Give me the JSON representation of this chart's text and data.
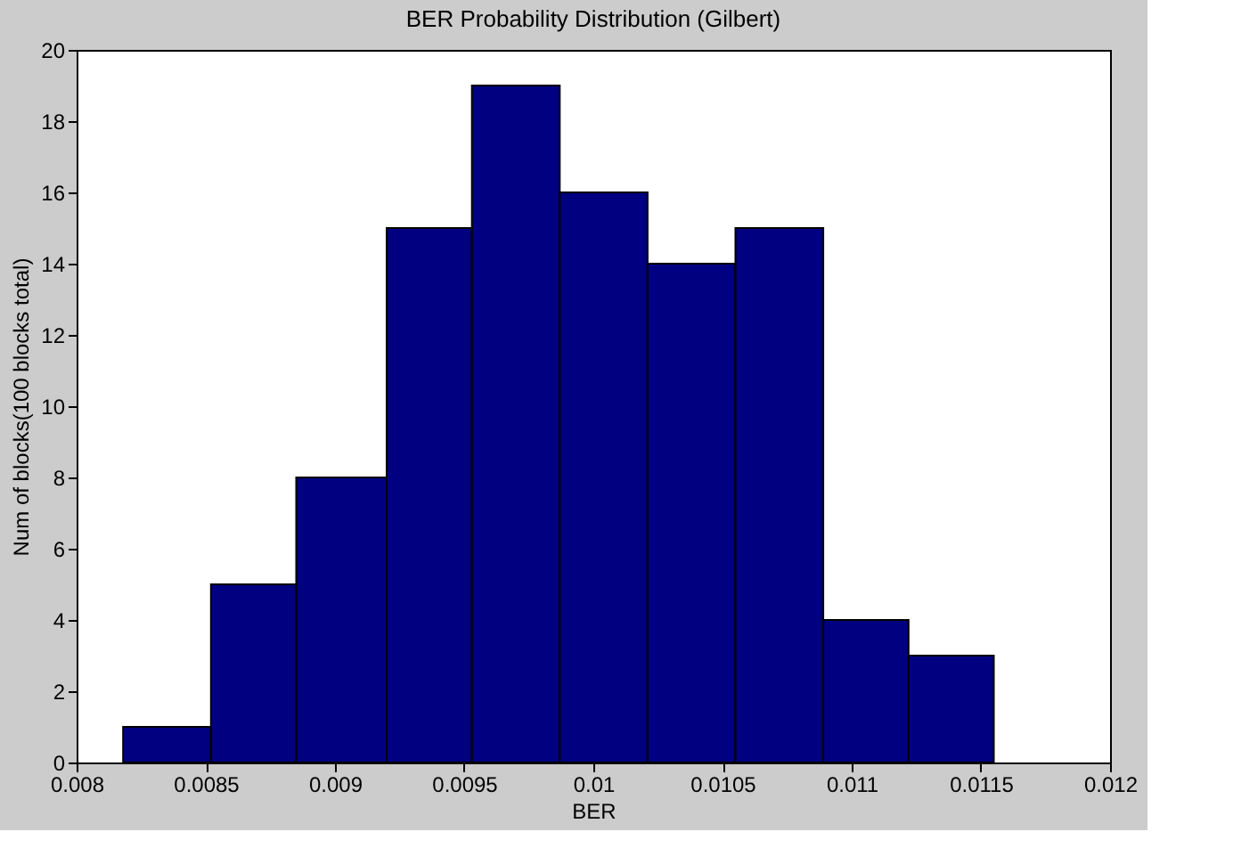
{
  "chart_data": {
    "type": "histogram",
    "title": "BER Probability Distribution (Gilbert)",
    "xlabel": "BER",
    "ylabel": "Num of blocks(100 blocks total)",
    "bins": [
      0.00818,
      0.00852,
      0.00885,
      0.0092,
      0.00953,
      0.00987,
      0.01021,
      0.01055,
      0.01089,
      0.01122,
      0.01155
    ],
    "values": [
      1,
      5,
      8,
      15,
      19,
      16,
      14,
      15,
      4,
      3
    ],
    "color": "#000080",
    "xlim": [
      0.008,
      0.012
    ],
    "xticks": [
      0.008,
      0.0085,
      0.009,
      0.0095,
      0.01,
      0.0105,
      0.011,
      0.0115,
      0.012
    ],
    "ylim": [
      0,
      20
    ],
    "yticks": [
      0,
      2,
      4,
      6,
      8,
      10,
      12,
      14,
      16,
      18,
      20
    ],
    "grid": false
  }
}
